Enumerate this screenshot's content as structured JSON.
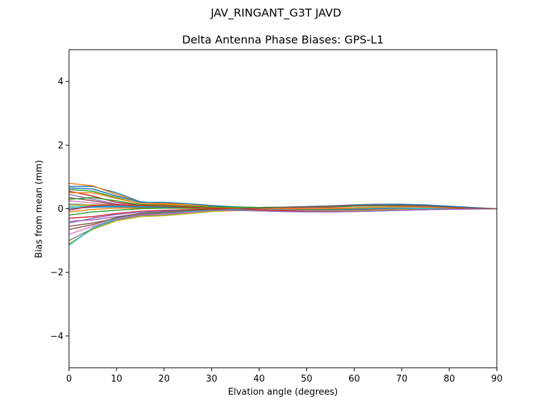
{
  "chart_data": {
    "type": "line",
    "suptitle": "JAV_RINGANT_G3T JAVD",
    "title": "Delta Antenna Phase Biases: GPS-L1",
    "xlabel": "Elvation angle (degrees)",
    "ylabel": "Bias from mean (mm)",
    "xlim": [
      0,
      90
    ],
    "ylim": [
      -5,
      5
    ],
    "xticks": [
      0,
      10,
      20,
      30,
      40,
      50,
      60,
      70,
      80,
      90
    ],
    "yticks": [
      -4,
      -2,
      0,
      2,
      4
    ],
    "ytick_labels": [
      "−4",
      "−2",
      "0",
      "2",
      "4"
    ],
    "grid": false,
    "x": [
      0,
      5,
      10,
      15,
      20,
      25,
      30,
      35,
      40,
      45,
      50,
      55,
      60,
      65,
      70,
      75,
      80,
      85,
      90
    ],
    "colors": [
      "#1f77b4",
      "#ff7f0e",
      "#2ca02c",
      "#d62728",
      "#9467bd",
      "#8c564b",
      "#e377c2",
      "#7f7f7f",
      "#bcbd22",
      "#17becf"
    ],
    "series": [
      {
        "values": [
          0.7,
          0.7,
          0.5,
          0.22,
          0.15,
          0.1,
          0.05,
          0.02,
          0.0,
          -0.02,
          -0.03,
          -0.03,
          -0.02,
          -0.01,
          0.0,
          0.01,
          0.02,
          0.01,
          0.0
        ]
      },
      {
        "values": [
          0.8,
          0.72,
          0.45,
          0.2,
          0.18,
          0.12,
          0.08,
          0.04,
          0.02,
          0.0,
          -0.01,
          -0.02,
          -0.01,
          0.0,
          0.01,
          0.02,
          0.02,
          0.01,
          0.0
        ]
      },
      {
        "values": [
          0.6,
          0.55,
          0.35,
          0.15,
          0.12,
          0.08,
          0.05,
          0.03,
          0.01,
          -0.01,
          -0.02,
          -0.01,
          0.0,
          0.02,
          0.03,
          0.03,
          0.02,
          0.01,
          0.0
        ]
      },
      {
        "values": [
          0.55,
          0.4,
          0.2,
          0.1,
          0.08,
          0.05,
          0.02,
          0.0,
          -0.02,
          -0.04,
          -0.05,
          -0.04,
          -0.02,
          0.0,
          0.02,
          0.03,
          0.03,
          0.01,
          0.0
        ]
      },
      {
        "values": [
          0.45,
          0.3,
          0.15,
          0.08,
          0.06,
          0.05,
          0.03,
          0.02,
          0.01,
          0.0,
          0.0,
          0.01,
          0.02,
          0.03,
          0.03,
          0.03,
          0.02,
          0.01,
          0.0
        ]
      },
      {
        "values": [
          0.35,
          0.25,
          0.12,
          0.06,
          0.05,
          0.04,
          0.03,
          0.02,
          0.02,
          0.03,
          0.04,
          0.05,
          0.08,
          0.1,
          0.12,
          0.1,
          0.06,
          0.03,
          0.0
        ]
      },
      {
        "values": [
          0.25,
          0.18,
          0.1,
          0.05,
          0.04,
          0.03,
          0.02,
          0.01,
          0.0,
          -0.01,
          -0.02,
          -0.02,
          -0.01,
          0.0,
          0.01,
          0.01,
          0.01,
          0.0,
          0.0
        ]
      },
      {
        "values": [
          0.15,
          0.12,
          0.1,
          0.08,
          0.06,
          0.04,
          0.03,
          0.02,
          0.01,
          0.0,
          -0.01,
          -0.02,
          -0.02,
          -0.01,
          0.0,
          0.01,
          0.01,
          0.0,
          0.0
        ]
      },
      {
        "values": [
          0.1,
          0.12,
          0.12,
          0.1,
          0.08,
          0.06,
          0.04,
          0.02,
          0.0,
          -0.02,
          -0.04,
          -0.05,
          -0.05,
          -0.04,
          -0.02,
          -0.01,
          0.0,
          0.0,
          0.0
        ]
      },
      {
        "values": [
          0.05,
          0.08,
          0.08,
          0.07,
          0.05,
          0.03,
          0.01,
          0.0,
          -0.02,
          -0.04,
          -0.05,
          -0.06,
          -0.05,
          -0.04,
          -0.03,
          -0.02,
          -0.01,
          0.0,
          0.0
        ]
      },
      {
        "values": [
          0.0,
          0.05,
          0.06,
          0.05,
          0.04,
          0.02,
          0.0,
          -0.02,
          -0.04,
          -0.06,
          -0.08,
          -0.08,
          -0.07,
          -0.05,
          -0.03,
          -0.02,
          -0.01,
          0.0,
          0.0
        ]
      },
      {
        "values": [
          -0.1,
          -0.02,
          0.02,
          0.02,
          0.02,
          0.01,
          0.0,
          -0.01,
          -0.03,
          -0.05,
          -0.06,
          -0.06,
          -0.05,
          -0.04,
          -0.02,
          -0.01,
          0.0,
          0.0,
          0.0
        ]
      },
      {
        "values": [
          -0.2,
          -0.1,
          -0.05,
          0.0,
          0.02,
          0.02,
          0.01,
          0.0,
          -0.01,
          -0.02,
          -0.03,
          -0.03,
          -0.02,
          -0.01,
          0.0,
          0.0,
          0.0,
          0.0,
          0.0
        ]
      },
      {
        "values": [
          -0.3,
          -0.25,
          -0.15,
          -0.08,
          -0.05,
          -0.03,
          -0.02,
          -0.02,
          -0.03,
          -0.04,
          -0.05,
          -0.05,
          -0.04,
          -0.02,
          -0.01,
          0.0,
          0.0,
          0.0,
          0.0
        ]
      },
      {
        "values": [
          -0.4,
          -0.35,
          -0.25,
          -0.15,
          -0.1,
          -0.06,
          -0.04,
          -0.03,
          -0.03,
          -0.04,
          -0.05,
          -0.05,
          -0.04,
          -0.03,
          -0.02,
          -0.01,
          0.0,
          0.0,
          0.0
        ]
      },
      {
        "values": [
          -0.55,
          -0.45,
          -0.3,
          -0.18,
          -0.14,
          -0.1,
          -0.06,
          -0.04,
          -0.02,
          -0.01,
          0.0,
          0.01,
          0.02,
          0.02,
          0.02,
          0.02,
          0.01,
          0.0,
          0.0
        ]
      },
      {
        "values": [
          -0.8,
          -0.55,
          -0.32,
          -0.2,
          -0.18,
          -0.12,
          -0.07,
          -0.04,
          -0.02,
          0.0,
          0.01,
          0.02,
          0.03,
          0.04,
          0.04,
          0.03,
          0.02,
          0.01,
          0.0
        ]
      },
      {
        "values": [
          -1.0,
          -0.62,
          -0.35,
          -0.22,
          -0.2,
          -0.15,
          -0.08,
          -0.05,
          -0.04,
          -0.05,
          -0.07,
          -0.08,
          -0.07,
          -0.05,
          -0.03,
          -0.02,
          -0.01,
          0.0,
          0.0
        ]
      },
      {
        "values": [
          -1.1,
          -0.65,
          -0.38,
          -0.25,
          -0.22,
          -0.16,
          -0.09,
          -0.06,
          -0.05,
          -0.06,
          -0.08,
          -0.08,
          -0.07,
          -0.05,
          -0.03,
          -0.02,
          -0.01,
          0.0,
          0.0
        ]
      },
      {
        "values": [
          -1.15,
          -0.6,
          -0.3,
          -0.15,
          -0.12,
          -0.08,
          -0.05,
          -0.03,
          -0.02,
          -0.01,
          0.0,
          0.01,
          0.02,
          0.02,
          0.02,
          0.01,
          0.01,
          0.0,
          0.0
        ]
      },
      {
        "values": [
          0.65,
          0.62,
          0.4,
          0.2,
          0.2,
          0.16,
          0.1,
          0.06,
          0.04,
          0.05,
          0.07,
          0.09,
          0.12,
          0.14,
          0.14,
          0.12,
          0.08,
          0.04,
          0.0
        ]
      },
      {
        "values": [
          0.5,
          0.5,
          0.32,
          0.16,
          0.14,
          0.1,
          0.06,
          0.03,
          0.01,
          0.0,
          0.0,
          0.01,
          0.03,
          0.05,
          0.06,
          0.05,
          0.03,
          0.01,
          0.0
        ]
      },
      {
        "values": [
          0.3,
          0.35,
          0.25,
          0.12,
          0.1,
          0.08,
          0.06,
          0.05,
          0.04,
          0.05,
          0.06,
          0.07,
          0.08,
          0.09,
          0.09,
          0.08,
          0.05,
          0.02,
          0.0
        ]
      },
      {
        "values": [
          -0.05,
          0.1,
          0.12,
          0.1,
          0.08,
          0.05,
          0.02,
          0.0,
          -0.03,
          -0.06,
          -0.09,
          -0.1,
          -0.09,
          -0.07,
          -0.05,
          -0.03,
          -0.01,
          0.0,
          0.0
        ]
      },
      {
        "values": [
          -0.45,
          -0.3,
          -0.18,
          -0.1,
          -0.07,
          -0.05,
          -0.04,
          -0.05,
          -0.07,
          -0.09,
          -0.1,
          -0.1,
          -0.09,
          -0.07,
          -0.05,
          -0.03,
          -0.02,
          -0.01,
          0.0
        ]
      },
      {
        "values": [
          -0.65,
          -0.5,
          -0.28,
          -0.14,
          -0.1,
          -0.06,
          -0.03,
          0.0,
          0.02,
          0.04,
          0.06,
          0.08,
          0.1,
          0.11,
          0.1,
          0.08,
          0.05,
          0.02,
          0.0
        ]
      }
    ]
  }
}
